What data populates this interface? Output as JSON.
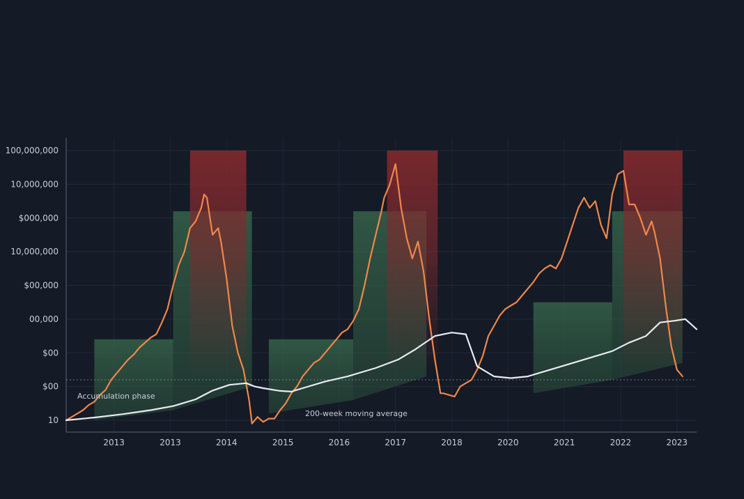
{
  "chart_data": {
    "type": "line",
    "title": "",
    "xlabel": "",
    "ylabel": "",
    "y_scale": "log",
    "grid": true,
    "legend": "none",
    "y_ticks": [
      {
        "label": "100,000,000",
        "value": 9
      },
      {
        "label": "10,000,000",
        "value": 8
      },
      {
        "label": "$000,000",
        "value": 7
      },
      {
        "label": "10,000,000",
        "value": 6
      },
      {
        "label": "$00,000",
        "value": 5
      },
      {
        "label": "00,000",
        "value": 4
      },
      {
        "label": "$00",
        "value": 3
      },
      {
        "label": "$00",
        "value": 2
      },
      {
        "label": "10",
        "value": 1
      }
    ],
    "x_range": [
      2012.0,
      2023.2
    ],
    "x_ticks": [
      {
        "label": "2013",
        "x": 2012.85
      },
      {
        "label": "2013",
        "x": 2013.85
      },
      {
        "label": "2014",
        "x": 2014.85
      },
      {
        "label": "2015",
        "x": 2015.85
      },
      {
        "label": "2016",
        "x": 2016.85
      },
      {
        "label": "2017",
        "x": 2017.85
      },
      {
        "label": "2018",
        "x": 2018.85
      },
      {
        "label": "2020",
        "x": 2019.85
      },
      {
        "label": "2021",
        "x": 2020.85
      },
      {
        "label": "2022",
        "x": 2021.85
      },
      {
        "label": "2023",
        "x": 2022.85
      }
    ],
    "reference_line": {
      "value": 2.2
    },
    "annotations": [
      {
        "text": "Accumulation phase"
      },
      {
        "text": "200-week moving average"
      }
    ],
    "zones": {
      "accumulation": [
        {
          "x0": 2012.5,
          "x1": 2013.9,
          "top": 3.4,
          "bottom0": 1.0,
          "bottom1": 1.3
        },
        {
          "x0": 2013.9,
          "x1": 2015.3,
          "top": 7.2,
          "bottom0": 1.3,
          "bottom1": 2.0
        },
        {
          "x0": 2015.6,
          "x1": 2017.1,
          "top": 3.4,
          "bottom0": 1.2,
          "bottom1": 1.6
        },
        {
          "x0": 2017.1,
          "x1": 2018.4,
          "top": 7.2,
          "bottom0": 1.6,
          "bottom1": 2.3
        },
        {
          "x0": 2020.3,
          "x1": 2021.7,
          "top": 4.5,
          "bottom0": 1.8,
          "bottom1": 2.2
        },
        {
          "x0": 2021.7,
          "x1": 2022.95,
          "top": 7.2,
          "bottom0": 2.2,
          "bottom1": 2.7
        }
      ],
      "distribution": [
        {
          "x0": 2014.2,
          "x1": 2015.2,
          "top": 9.0,
          "bottom": 5.5,
          "fade_to": 2.3
        },
        {
          "x0": 2017.7,
          "x1": 2018.6,
          "top": 9.0,
          "bottom": 5.6,
          "fade_to": 2.4
        },
        {
          "x0": 2021.9,
          "x1": 2022.95,
          "top": 9.0,
          "bottom": 5.6,
          "fade_to": 2.4
        }
      ]
    },
    "series": [
      {
        "color": "#f0874a",
        "points": [
          [
            2012.0,
            1.0
          ],
          [
            2012.1,
            1.1
          ],
          [
            2012.2,
            1.2
          ],
          [
            2012.3,
            1.3
          ],
          [
            2012.4,
            1.45
          ],
          [
            2012.5,
            1.55
          ],
          [
            2012.6,
            1.75
          ],
          [
            2012.7,
            1.9
          ],
          [
            2012.8,
            2.2
          ],
          [
            2012.9,
            2.4
          ],
          [
            2013.0,
            2.6
          ],
          [
            2013.1,
            2.8
          ],
          [
            2013.2,
            2.95
          ],
          [
            2013.3,
            3.15
          ],
          [
            2013.4,
            3.3
          ],
          [
            2013.5,
            3.45
          ],
          [
            2013.6,
            3.55
          ],
          [
            2013.7,
            3.9
          ],
          [
            2013.8,
            4.3
          ],
          [
            2013.9,
            5.0
          ],
          [
            2014.0,
            5.6
          ],
          [
            2014.1,
            6.0
          ],
          [
            2014.2,
            6.7
          ],
          [
            2014.3,
            6.9
          ],
          [
            2014.4,
            7.3
          ],
          [
            2014.45,
            7.7
          ],
          [
            2014.5,
            7.6
          ],
          [
            2014.6,
            6.5
          ],
          [
            2014.7,
            6.7
          ],
          [
            2014.75,
            6.3
          ],
          [
            2014.85,
            5.2
          ],
          [
            2014.95,
            3.8
          ],
          [
            2015.05,
            3.0
          ],
          [
            2015.15,
            2.5
          ],
          [
            2015.25,
            1.6
          ],
          [
            2015.3,
            0.9
          ],
          [
            2015.4,
            1.1
          ],
          [
            2015.5,
            0.95
          ],
          [
            2015.6,
            1.05
          ],
          [
            2015.7,
            1.05
          ],
          [
            2015.8,
            1.3
          ],
          [
            2015.9,
            1.5
          ],
          [
            2016.0,
            1.8
          ],
          [
            2016.1,
            2.0
          ],
          [
            2016.2,
            2.3
          ],
          [
            2016.3,
            2.5
          ],
          [
            2016.4,
            2.7
          ],
          [
            2016.5,
            2.8
          ],
          [
            2016.6,
            3.0
          ],
          [
            2016.7,
            3.2
          ],
          [
            2016.8,
            3.4
          ],
          [
            2016.9,
            3.6
          ],
          [
            2017.0,
            3.7
          ],
          [
            2017.1,
            3.95
          ],
          [
            2017.2,
            4.3
          ],
          [
            2017.3,
            5.0
          ],
          [
            2017.4,
            5.8
          ],
          [
            2017.5,
            6.5
          ],
          [
            2017.6,
            7.2
          ],
          [
            2017.65,
            7.6
          ],
          [
            2017.75,
            8.0
          ],
          [
            2017.85,
            8.6
          ],
          [
            2017.95,
            7.3
          ],
          [
            2018.05,
            6.4
          ],
          [
            2018.15,
            5.8
          ],
          [
            2018.25,
            6.3
          ],
          [
            2018.35,
            5.4
          ],
          [
            2018.45,
            4.0
          ],
          [
            2018.55,
            2.8
          ],
          [
            2018.65,
            1.8
          ],
          [
            2018.7,
            1.8
          ],
          [
            2018.8,
            1.75
          ],
          [
            2018.9,
            1.7
          ],
          [
            2019.0,
            2.0
          ],
          [
            2019.1,
            2.1
          ],
          [
            2019.2,
            2.2
          ],
          [
            2019.3,
            2.5
          ],
          [
            2019.4,
            2.9
          ],
          [
            2019.5,
            3.5
          ],
          [
            2019.6,
            3.8
          ],
          [
            2019.7,
            4.1
          ],
          [
            2019.8,
            4.3
          ],
          [
            2019.9,
            4.4
          ],
          [
            2020.0,
            4.5
          ],
          [
            2020.1,
            4.7
          ],
          [
            2020.2,
            4.9
          ],
          [
            2020.3,
            5.1
          ],
          [
            2020.4,
            5.35
          ],
          [
            2020.5,
            5.5
          ],
          [
            2020.6,
            5.6
          ],
          [
            2020.7,
            5.5
          ],
          [
            2020.8,
            5.8
          ],
          [
            2020.9,
            6.3
          ],
          [
            2021.0,
            6.8
          ],
          [
            2021.1,
            7.3
          ],
          [
            2021.2,
            7.6
          ],
          [
            2021.3,
            7.3
          ],
          [
            2021.4,
            7.5
          ],
          [
            2021.5,
            6.8
          ],
          [
            2021.6,
            6.4
          ],
          [
            2021.7,
            7.7
          ],
          [
            2021.8,
            8.3
          ],
          [
            2021.9,
            8.4
          ],
          [
            2022.0,
            7.4
          ],
          [
            2022.1,
            7.4
          ],
          [
            2022.2,
            7.0
          ],
          [
            2022.3,
            6.5
          ],
          [
            2022.4,
            6.9
          ],
          [
            2022.45,
            6.6
          ],
          [
            2022.55,
            5.8
          ],
          [
            2022.65,
            4.4
          ],
          [
            2022.75,
            3.2
          ],
          [
            2022.85,
            2.5
          ],
          [
            2022.95,
            2.3
          ]
        ]
      },
      {
        "color": "#e9ecf2",
        "points": [
          [
            2012.0,
            1.0
          ],
          [
            2012.5,
            1.08
          ],
          [
            2013.0,
            1.18
          ],
          [
            2013.5,
            1.3
          ],
          [
            2013.9,
            1.42
          ],
          [
            2014.3,
            1.62
          ],
          [
            2014.6,
            1.88
          ],
          [
            2014.9,
            2.05
          ],
          [
            2015.2,
            2.1
          ],
          [
            2015.35,
            2.0
          ],
          [
            2015.5,
            1.95
          ],
          [
            2015.8,
            1.87
          ],
          [
            2016.0,
            1.85
          ],
          [
            2016.2,
            1.95
          ],
          [
            2016.6,
            2.15
          ],
          [
            2017.0,
            2.3
          ],
          [
            2017.5,
            2.55
          ],
          [
            2017.9,
            2.8
          ],
          [
            2018.2,
            3.1
          ],
          [
            2018.55,
            3.5
          ],
          [
            2018.85,
            3.6
          ],
          [
            2019.1,
            3.55
          ],
          [
            2019.3,
            2.6
          ],
          [
            2019.6,
            2.3
          ],
          [
            2019.9,
            2.25
          ],
          [
            2020.2,
            2.3
          ],
          [
            2020.6,
            2.5
          ],
          [
            2021.0,
            2.7
          ],
          [
            2021.4,
            2.9
          ],
          [
            2021.7,
            3.05
          ],
          [
            2022.0,
            3.3
          ],
          [
            2022.3,
            3.5
          ],
          [
            2022.55,
            3.9
          ],
          [
            2022.8,
            3.95
          ],
          [
            2023.0,
            4.0
          ],
          [
            2023.1,
            3.85
          ],
          [
            2023.2,
            3.7
          ]
        ]
      }
    ]
  }
}
